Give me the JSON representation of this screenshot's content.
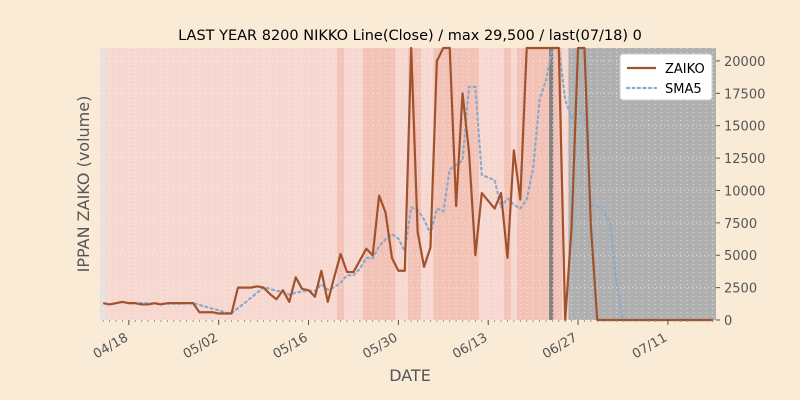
{
  "chart_data": {
    "type": "line",
    "title": "LAST YEAR 8200 NIKKO Line(Close) / max 29,500 / last(07/18) 0",
    "xlabel": "DATE",
    "ylabel": "IPPAN ZAIKO (volume)",
    "ylim": [
      0,
      21000
    ],
    "yticks": [
      0,
      2500,
      5000,
      7500,
      10000,
      12500,
      15000,
      17500,
      20000
    ],
    "ytick_labels": [
      "0",
      "2500",
      "5000",
      "7500",
      "10000",
      "12500",
      "15000",
      "17500",
      "20000"
    ],
    "x_dates": [
      "04/14",
      "04/15",
      "04/16",
      "04/17",
      "04/18",
      "04/19",
      "04/20",
      "04/21",
      "04/22",
      "04/23",
      "04/24",
      "04/25",
      "04/26",
      "04/27",
      "04/28",
      "04/29",
      "04/30",
      "05/01",
      "05/02",
      "05/03",
      "05/04",
      "05/05",
      "05/06",
      "05/07",
      "05/08",
      "05/09",
      "05/10",
      "05/11",
      "05/12",
      "05/13",
      "05/14",
      "05/15",
      "05/16",
      "05/17",
      "05/18",
      "05/19",
      "05/20",
      "05/21",
      "05/22",
      "05/23",
      "05/24",
      "05/25",
      "05/26",
      "05/27",
      "05/28",
      "05/29",
      "05/30",
      "05/31",
      "06/01",
      "06/02",
      "06/03",
      "06/04",
      "06/05",
      "06/06",
      "06/07",
      "06/08",
      "06/09",
      "06/10",
      "06/11",
      "06/12",
      "06/13",
      "06/14",
      "06/15",
      "06/16",
      "06/17",
      "06/18",
      "06/19",
      "06/20",
      "06/21",
      "06/22",
      "06/23",
      "06/24",
      "06/25",
      "06/26",
      "06/27",
      "06/28",
      "06/29",
      "06/30",
      "07/01",
      "07/02",
      "07/03",
      "07/04",
      "07/05",
      "07/06",
      "07/07",
      "07/08",
      "07/09",
      "07/10",
      "07/11",
      "07/12",
      "07/13",
      "07/14",
      "07/15",
      "07/16",
      "07/17",
      "07/18"
    ],
    "xtick_labels": [
      "04/18",
      "05/02",
      "05/16",
      "05/30",
      "06/13",
      "06/27",
      "07/11"
    ],
    "series": [
      {
        "name": "ZAIKO",
        "color": "#a0522d",
        "style": "solid",
        "values": [
          1300,
          1200,
          1300,
          1400,
          1300,
          1300,
          1200,
          1200,
          1300,
          1200,
          1300,
          1300,
          1300,
          1300,
          1300,
          600,
          600,
          600,
          500,
          500,
          500,
          2500,
          2500,
          2500,
          2600,
          2500,
          2000,
          1600,
          2300,
          1400,
          3300,
          2400,
          2300,
          1800,
          3800,
          1400,
          3300,
          5100,
          3700,
          3700,
          4600,
          5500,
          5000,
          9600,
          8300,
          4800,
          3800,
          3800,
          21000,
          6800,
          4100,
          5600,
          20000,
          21000,
          21000,
          8800,
          17500,
          13000,
          5000,
          9800,
          9200,
          8600,
          9800,
          4800,
          13100,
          9300,
          21000,
          21000,
          21000,
          21000,
          21000,
          21000,
          0,
          7200,
          21000,
          21000,
          7200,
          0,
          0,
          0,
          0,
          0,
          0,
          0,
          0,
          0,
          0,
          0,
          0,
          0,
          0,
          0,
          0,
          0,
          0,
          0
        ]
      },
      {
        "name": "SMA5",
        "color": "#8fa8c8",
        "style": "dotted",
        "values": [
          null,
          null,
          null,
          null,
          1300,
          1300,
          1300,
          1300,
          1260,
          1260,
          1260,
          1260,
          1260,
          1280,
          1300,
          1160,
          1020,
          880,
          760,
          560,
          540,
          920,
          1300,
          1700,
          2120,
          2520,
          2420,
          2240,
          2200,
          1960,
          2120,
          2200,
          2260,
          2240,
          2760,
          2340,
          2520,
          2880,
          3460,
          3440,
          3960,
          4800,
          4760,
          5700,
          6220,
          6640,
          6280,
          5300,
          8700,
          8500,
          7760,
          6660,
          8600,
          8380,
          11600,
          11980,
          12300,
          18000,
          18000,
          11200,
          11000,
          10800,
          8700,
          9400,
          8900,
          8600,
          9300,
          11700,
          17000,
          18500,
          21000,
          21000,
          17000,
          15600,
          16000,
          16000,
          8800,
          8800,
          8400,
          7400,
          2800,
          0,
          0,
          0,
          0,
          0,
          0,
          0,
          0,
          0,
          0,
          0,
          0,
          0,
          0,
          0
        ]
      }
    ],
    "grid": true,
    "legend_position": "top-right",
    "background_colors": {
      "figure": "#faebd7",
      "weekday_band": "#f7d8d0",
      "highlight_band": "#f0b0a0",
      "future_region": "#b0b0b0",
      "marker_line": "#808080"
    }
  }
}
